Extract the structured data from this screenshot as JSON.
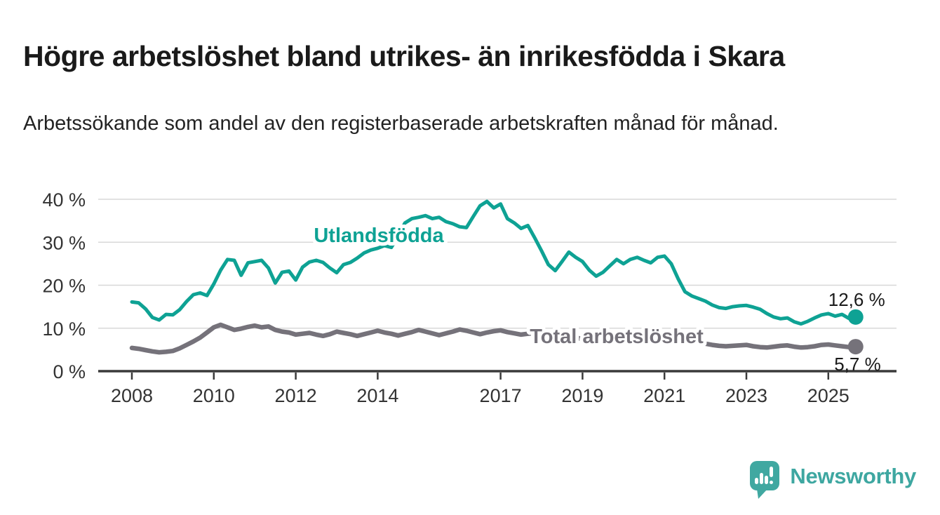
{
  "header": {
    "title": "Högre arbetslöshet bland utrikes- än inrikesfödda i Skara",
    "subtitle": "Arbetssökande som andel av den registerbaserade arbetskraften månad för månad."
  },
  "branding": {
    "logo_text": "Newsworthy",
    "logo_color": "#40a8a1"
  },
  "colors": {
    "title_text": "#1a1a1a",
    "axis_text": "#333333",
    "axis_line": "#3a3a3a",
    "gridline": "#d8d8d8",
    "annotation_text": "#1a1a1a",
    "series_foreign_born": "#0ea294",
    "series_total": "#75727a"
  },
  "chart_data": {
    "type": "line",
    "title": "Högre arbetslöshet bland utrikes- än inrikesfödda i Skara",
    "subtitle": "Arbetssökande som andel av den registerbaserade arbetskraften månad för månad.",
    "unit": "%",
    "x_start_year": 2008,
    "points_per_year": 6,
    "x_end": "2025 (Sep)",
    "xlim": [
      2008,
      2025.67
    ],
    "ylim": [
      0,
      42
    ],
    "grid": "horizontal",
    "legend_position": "inline-labels",
    "xticks": [
      2008,
      2010,
      2012,
      2014,
      2017,
      2019,
      2021,
      2023,
      2025
    ],
    "ytick_values": [
      0,
      10,
      20,
      30,
      40
    ],
    "ytick_labels": [
      "0 %",
      "10 %",
      "20 %",
      "30 %",
      "40 %"
    ],
    "series": [
      {
        "name": "Utlandsfödda",
        "color": "#0ea294",
        "end_label": "12,6 %",
        "last_value": 12.6,
        "values": [
          16.1,
          15.9,
          14.5,
          12.5,
          11.9,
          13.2,
          13.1,
          14.3,
          16.2,
          17.8,
          18.2,
          17.6,
          20.3,
          23.5,
          26.0,
          25.8,
          22.3,
          25.2,
          25.5,
          25.8,
          24.0,
          20.5,
          23.0,
          23.3,
          21.2,
          24.2,
          25.4,
          25.8,
          25.3,
          24.0,
          22.9,
          24.8,
          25.3,
          26.3,
          27.5,
          28.2,
          28.6,
          29.2,
          28.8,
          31.5,
          34.5,
          35.5,
          35.8,
          36.2,
          35.5,
          35.8,
          34.8,
          34.3,
          33.6,
          33.4,
          36.0,
          38.5,
          39.5,
          38.0,
          38.9,
          35.5,
          34.5,
          33.2,
          33.9,
          31.0,
          28.0,
          24.8,
          23.4,
          25.5,
          27.7,
          26.5,
          25.5,
          23.5,
          22.1,
          23.0,
          24.5,
          26.0,
          25.0,
          26.0,
          26.5,
          25.8,
          25.2,
          26.5,
          26.8,
          25.0,
          21.5,
          18.5,
          17.5,
          16.9,
          16.3,
          15.4,
          14.8,
          14.6,
          15.0,
          15.2,
          15.3,
          14.9,
          14.4,
          13.4,
          12.6,
          12.2,
          12.4,
          11.5,
          11.0,
          11.6,
          12.4,
          13.1,
          13.4,
          12.8,
          13.2,
          12.3,
          12.6
        ]
      },
      {
        "name": "Total arbetslöshet",
        "color": "#75727a",
        "end_label": "5,7 %",
        "last_value": 5.7,
        "values": [
          5.4,
          5.2,
          4.9,
          4.6,
          4.4,
          4.5,
          4.7,
          5.3,
          6.1,
          6.9,
          7.8,
          9.0,
          10.2,
          10.8,
          10.2,
          9.6,
          9.9,
          10.3,
          10.6,
          10.2,
          10.4,
          9.6,
          9.2,
          9.0,
          8.5,
          8.7,
          8.9,
          8.5,
          8.2,
          8.6,
          9.2,
          8.9,
          8.6,
          8.2,
          8.6,
          9.0,
          9.4,
          9.0,
          8.7,
          8.3,
          8.7,
          9.1,
          9.6,
          9.2,
          8.8,
          8.4,
          8.8,
          9.2,
          9.7,
          9.4,
          9.0,
          8.6,
          9.0,
          9.3,
          9.5,
          9.1,
          8.8,
          8.5,
          8.7,
          8.9,
          8.4,
          8.0,
          7.7,
          7.5,
          7.7,
          7.9,
          7.4,
          7.1,
          6.9,
          6.8,
          7.0,
          7.2,
          7.5,
          8.2,
          8.9,
          9.2,
          9.0,
          8.8,
          8.6,
          8.2,
          7.8,
          7.3,
          6.9,
          6.6,
          6.4,
          6.1,
          5.9,
          5.8,
          5.9,
          6.0,
          6.1,
          5.8,
          5.6,
          5.5,
          5.7,
          5.9,
          6.0,
          5.7,
          5.5,
          5.6,
          5.8,
          6.1,
          6.2,
          6.0,
          5.8,
          5.6,
          5.7
        ]
      }
    ]
  }
}
